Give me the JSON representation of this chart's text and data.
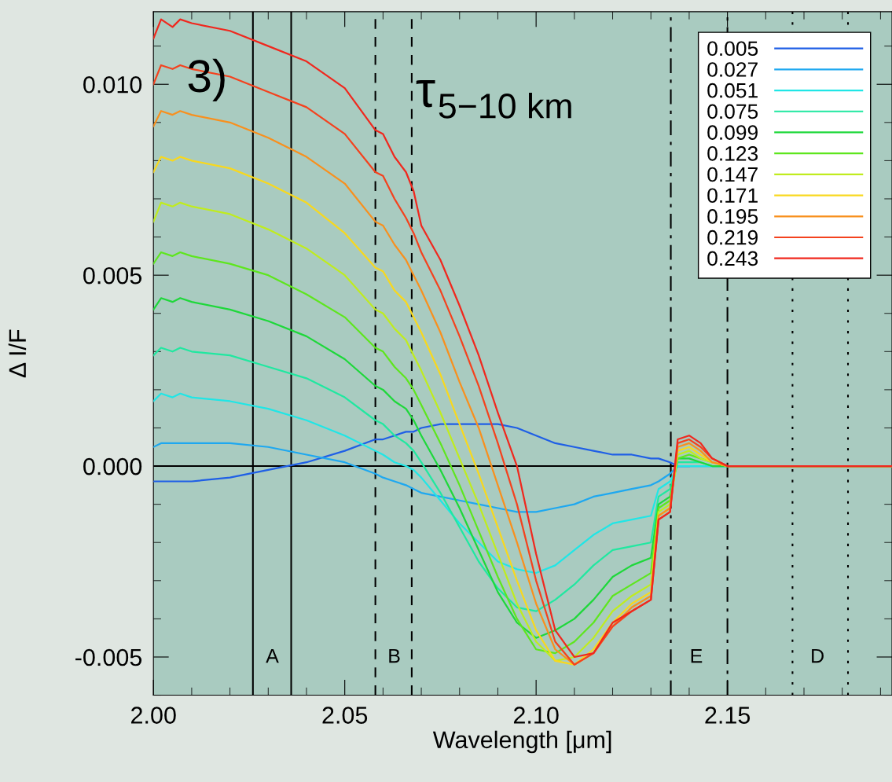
{
  "chart_data": {
    "type": "line",
    "xlabel": "Wavelength [μm]",
    "ylabel": "Δ I/F",
    "x": [
      2.0,
      2.002,
      2.005,
      2.007,
      2.01,
      2.02,
      2.03,
      2.04,
      2.05,
      2.058,
      2.06,
      2.063,
      2.066,
      2.068,
      2.07,
      2.075,
      2.08,
      2.085,
      2.09,
      2.095,
      2.1,
      2.105,
      2.11,
      2.115,
      2.12,
      2.125,
      2.13,
      2.132,
      2.135,
      2.137,
      2.14,
      2.143,
      2.146,
      2.15,
      2.193
    ],
    "series": [
      {
        "name": "0.005",
        "color": "#1f5fe6",
        "values": [
          -0.0004,
          -0.0004,
          -0.0004,
          -0.0004,
          -0.0004,
          -0.0003,
          -0.0001,
          0.0001,
          0.0004,
          0.0007,
          0.0007,
          0.0008,
          0.0009,
          0.0009,
          0.001,
          0.0011,
          0.0011,
          0.0011,
          0.0011,
          0.001,
          0.0008,
          0.0006,
          0.0005,
          0.0004,
          0.0003,
          0.0003,
          0.0002,
          0.0002,
          0.0001,
          0.0,
          0.0,
          null,
          null,
          null,
          null
        ]
      },
      {
        "name": "0.027",
        "color": "#1ea8f0",
        "values": [
          0.0005,
          0.0006,
          0.0006,
          0.0006,
          0.0006,
          0.0006,
          0.0005,
          0.0003,
          0.0001,
          -0.0002,
          -0.0003,
          -0.0004,
          -0.0005,
          -0.0006,
          -0.0007,
          -0.0008,
          -0.0009,
          -0.001,
          -0.0011,
          -0.0012,
          -0.0012,
          -0.0011,
          -0.001,
          -0.0008,
          -0.0007,
          -0.0006,
          -0.0005,
          -0.0004,
          -0.0002,
          0.0,
          0.0,
          0.0,
          0.0,
          0.0,
          0.0
        ]
      },
      {
        "name": "0.051",
        "color": "#20e6e6",
        "values": [
          0.0017,
          0.0019,
          0.0018,
          0.0019,
          0.0018,
          0.0017,
          0.0015,
          0.0012,
          0.0008,
          0.0004,
          0.0003,
          0.0001,
          0.0,
          -0.0001,
          -0.0003,
          -0.0009,
          -0.0015,
          -0.002,
          -0.0025,
          -0.0027,
          -0.0028,
          -0.0026,
          -0.0022,
          -0.0018,
          -0.0015,
          -0.0014,
          -0.0013,
          -0.0006,
          -0.0004,
          0.0,
          0.0,
          0.0,
          0.0,
          0.0,
          0.0
        ]
      },
      {
        "name": "0.075",
        "color": "#20e8a0",
        "values": [
          0.0029,
          0.0031,
          0.003,
          0.0031,
          0.003,
          0.0029,
          0.0026,
          0.0023,
          0.0018,
          0.0012,
          0.0011,
          0.0008,
          0.0006,
          0.0004,
          0.0001,
          -0.0007,
          -0.0016,
          -0.0025,
          -0.0032,
          -0.0037,
          -0.0038,
          -0.0035,
          -0.0031,
          -0.0026,
          -0.0022,
          -0.0021,
          -0.002,
          -0.0008,
          -0.0006,
          0.0001,
          0.0001,
          0.0001,
          0.0,
          0.0,
          0.0
        ]
      },
      {
        "name": "0.099",
        "color": "#1ed83a",
        "values": [
          0.0041,
          0.0044,
          0.0043,
          0.0044,
          0.0043,
          0.0041,
          0.0038,
          0.0034,
          0.0028,
          0.0021,
          0.002,
          0.0017,
          0.0015,
          0.0012,
          0.0008,
          -0.0001,
          -0.0011,
          -0.0022,
          -0.0033,
          -0.0041,
          -0.0045,
          -0.0043,
          -0.004,
          -0.0035,
          -0.0029,
          -0.0026,
          -0.0024,
          -0.001,
          -0.0008,
          0.0002,
          0.0002,
          0.0001,
          0.0,
          0.0,
          0.0
        ]
      },
      {
        "name": "0.123",
        "color": "#5ee61e",
        "values": [
          0.0053,
          0.0056,
          0.0055,
          0.0056,
          0.0055,
          0.0053,
          0.005,
          0.0045,
          0.0039,
          0.0031,
          0.003,
          0.0026,
          0.0023,
          0.002,
          0.0016,
          0.0006,
          -0.0005,
          -0.0017,
          -0.0029,
          -0.004,
          -0.0048,
          -0.0049,
          -0.0046,
          -0.0041,
          -0.0034,
          -0.0031,
          -0.0028,
          -0.0011,
          -0.0009,
          0.0002,
          0.0003,
          0.0002,
          0.0001,
          null,
          null
        ]
      },
      {
        "name": "0.147",
        "color": "#c0ec1e",
        "values": [
          0.0064,
          0.0069,
          0.0068,
          0.0069,
          0.0068,
          0.0066,
          0.0062,
          0.0057,
          0.005,
          0.0041,
          0.004,
          0.0036,
          0.0033,
          0.0029,
          0.0025,
          0.0014,
          0.0002,
          -0.001,
          -0.0023,
          -0.0036,
          -0.0046,
          -0.0051,
          -0.005,
          -0.0045,
          -0.0038,
          -0.0034,
          -0.0031,
          -0.0012,
          -0.001,
          0.0003,
          0.0004,
          0.0002,
          0.0001,
          0.0,
          0.0
        ]
      },
      {
        "name": "0.171",
        "color": "#f8d81e",
        "values": [
          0.0077,
          0.0081,
          0.008,
          0.0081,
          0.008,
          0.0078,
          0.0074,
          0.0069,
          0.0061,
          0.0052,
          0.0051,
          0.0046,
          0.0043,
          0.0039,
          0.0035,
          0.0024,
          0.0011,
          -0.0002,
          -0.0016,
          -0.003,
          -0.0043,
          -0.0051,
          -0.0052,
          -0.0048,
          -0.0041,
          -0.0036,
          -0.0033,
          -0.0013,
          -0.0011,
          0.0004,
          0.0005,
          0.0003,
          0.0001,
          0.0,
          0.0
        ]
      },
      {
        "name": "0.195",
        "color": "#f8901e",
        "values": [
          0.0089,
          0.0093,
          0.0092,
          0.0093,
          0.0092,
          0.009,
          0.0086,
          0.0081,
          0.0074,
          0.0064,
          0.0063,
          0.0058,
          0.0054,
          0.005,
          0.0046,
          0.0035,
          0.0022,
          0.001,
          -0.0005,
          -0.002,
          -0.0036,
          -0.0048,
          -0.0052,
          -0.0049,
          -0.0042,
          -0.0037,
          -0.0034,
          -0.0013,
          -0.0011,
          0.0005,
          0.0006,
          0.0004,
          0.0001,
          0.0,
          0.0
        ]
      },
      {
        "name": "0.219",
        "color": "#f4421e",
        "values": [
          0.01,
          0.0105,
          0.0104,
          0.0105,
          0.0104,
          0.0102,
          0.0098,
          0.0094,
          0.0087,
          0.0077,
          0.0076,
          0.007,
          0.0065,
          0.0061,
          0.0056,
          0.0046,
          0.0034,
          0.0021,
          0.0006,
          -0.001,
          -0.003,
          -0.0046,
          -0.0052,
          -0.0049,
          -0.0042,
          -0.0038,
          -0.0035,
          -0.0014,
          -0.0012,
          0.0006,
          0.0007,
          0.0005,
          0.0002,
          0.0,
          0.0
        ]
      },
      {
        "name": "0.243",
        "color": "#f0281e",
        "values": [
          0.0112,
          0.0117,
          0.0115,
          0.0117,
          0.0116,
          0.0114,
          0.011,
          0.0106,
          0.0099,
          0.0088,
          0.0087,
          0.0081,
          0.0077,
          0.0072,
          0.0063,
          0.0054,
          0.0042,
          0.0029,
          0.0014,
          0.0,
          -0.0023,
          -0.0043,
          -0.005,
          -0.0049,
          -0.0041,
          -0.0038,
          -0.0035,
          -0.0014,
          -0.0012,
          0.0007,
          0.0008,
          0.0006,
          0.0002,
          0.0,
          0.0
        ]
      }
    ],
    "xlim": [
      2.0,
      2.193
    ],
    "ylim": [
      -0.006,
      0.0119
    ],
    "xticks": [
      {
        "value": 2.0,
        "label": "2.00"
      },
      {
        "value": 2.05,
        "label": "2.05"
      },
      {
        "value": 2.1,
        "label": "2.10"
      },
      {
        "value": 2.15,
        "label": "2.15"
      }
    ],
    "yticks": [
      {
        "value": -0.005,
        "label": "-0.005"
      },
      {
        "value": 0.0,
        "label": "0.000"
      },
      {
        "value": 0.005,
        "label": "0.005"
      },
      {
        "value": 0.01,
        "label": "0.010"
      }
    ],
    "ref_lines": [
      {
        "axis": "y",
        "value": 0.0,
        "color": "#000000",
        "line_style": "solid"
      },
      {
        "axis": "x",
        "value": 2.026,
        "color": "#000000",
        "line_style": "solid"
      },
      {
        "axis": "x",
        "value": 2.036,
        "color": "#000000",
        "line_style": "solid"
      },
      {
        "axis": "x",
        "value": 2.058,
        "color": "#000000",
        "line_style": "dashed"
      },
      {
        "axis": "x",
        "value": 2.0675,
        "color": "#000000",
        "line_style": "dashed"
      },
      {
        "axis": "x",
        "value": 2.1352,
        "color": "#000000",
        "line_style": "dashdot"
      },
      {
        "axis": "x",
        "value": 2.15,
        "color": "#000000",
        "line_style": "dashdot"
      },
      {
        "axis": "x",
        "value": 2.167,
        "color": "#000000",
        "line_style": "dotted"
      },
      {
        "axis": "x",
        "value": 2.1815,
        "color": "#000000",
        "line_style": "dotted"
      }
    ],
    "annotations": [
      "3)",
      "τ$_{5−10 km}$",
      "A",
      "B",
      "E",
      "D"
    ],
    "legend": "top right",
    "grid": false,
    "marker": "none",
    "line_style": "solid"
  }
}
